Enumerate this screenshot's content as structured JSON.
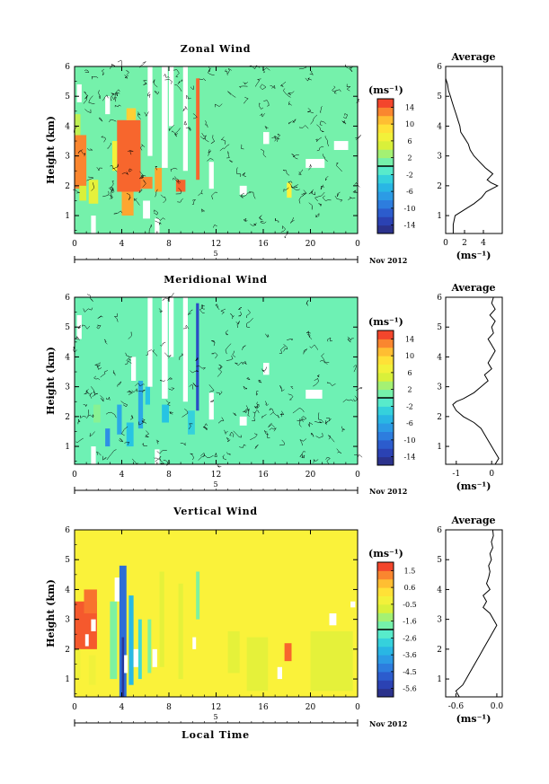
{
  "chart_data": [
    {
      "type": "heatmap",
      "title": "Zonal Wind",
      "ylabel": "Height (km)",
      "xticks": [
        "0",
        "4",
        "8",
        "12",
        "16",
        "20",
        "0"
      ],
      "yticks": [
        "1",
        "2",
        "3",
        "4",
        "5",
        "6"
      ],
      "xlim": [
        0,
        24
      ],
      "ylim": [
        0.4,
        6
      ],
      "date_tick": "5",
      "date_label": "Nov 2012",
      "colorbar": {
        "unit": "(ms⁻¹)",
        "range": [
          -16,
          16
        ],
        "ticks": [
          "14",
          "10",
          "6",
          "2",
          "-2",
          "-6",
          "-10",
          "-14"
        ]
      },
      "cells": [
        {
          "t0": 0.0,
          "t1": 1.0,
          "z0": 1.9,
          "z1": 3.7,
          "v": 13
        },
        {
          "t0": 0.4,
          "t1": 1.0,
          "z0": 1.5,
          "z1": 2.0,
          "v": 5
        },
        {
          "t0": 1.2,
          "t1": 2.0,
          "z0": 1.4,
          "z1": 2.2,
          "v": 6
        },
        {
          "t0": 3.6,
          "t1": 5.6,
          "z0": 1.8,
          "z1": 4.2,
          "v": 14
        },
        {
          "t0": 4.0,
          "t1": 5.0,
          "z0": 1.0,
          "z1": 1.8,
          "v": 12
        },
        {
          "t0": 4.4,
          "t1": 5.2,
          "z0": 4.2,
          "z1": 4.6,
          "v": 10
        },
        {
          "t0": 5.6,
          "t1": 6.6,
          "z0": 1.9,
          "z1": 2.3,
          "v": 13
        },
        {
          "t0": 6.8,
          "t1": 7.4,
          "z0": 1.8,
          "z1": 2.6,
          "v": 12
        },
        {
          "t0": 8.6,
          "t1": 9.4,
          "z0": 1.8,
          "z1": 2.2,
          "v": 14
        },
        {
          "t0": 10.3,
          "t1": 10.6,
          "z0": 2.2,
          "z1": 5.6,
          "v": 14
        },
        {
          "t0": 18.0,
          "t1": 18.4,
          "z0": 1.6,
          "z1": 2.1,
          "v": 8
        },
        {
          "t0": 0.0,
          "t1": 0.5,
          "z0": 3.7,
          "z1": 4.4,
          "v": 4
        },
        {
          "t0": 3.2,
          "t1": 3.6,
          "z0": 2.5,
          "z1": 3.5,
          "v": 7
        }
      ],
      "gaps": [
        {
          "t0": 6.2,
          "t1": 6.6,
          "z0": 3.0,
          "z1": 6.0
        },
        {
          "t0": 7.4,
          "t1": 7.9,
          "z0": 2.6,
          "z1": 6.0
        },
        {
          "t0": 8.0,
          "t1": 8.4,
          "z0": 4.0,
          "z1": 6.0
        },
        {
          "t0": 9.2,
          "t1": 9.6,
          "z0": 2.5,
          "z1": 6.0
        },
        {
          "t0": 2.6,
          "t1": 3.0,
          "z0": 4.4,
          "z1": 5.0
        },
        {
          "t0": 0.2,
          "t1": 0.6,
          "z0": 4.8,
          "z1": 5.4
        },
        {
          "t0": 1.4,
          "t1": 1.8,
          "z0": 0.4,
          "z1": 1.0
        },
        {
          "t0": 5.8,
          "t1": 6.4,
          "z0": 0.9,
          "z1": 1.5
        },
        {
          "t0": 11.4,
          "t1": 11.8,
          "z0": 1.9,
          "z1": 2.8
        },
        {
          "t0": 19.6,
          "t1": 21.2,
          "z0": 2.6,
          "z1": 2.9
        },
        {
          "t0": 14.0,
          "t1": 14.6,
          "z0": 1.7,
          "z1": 2.0
        },
        {
          "t0": 22.0,
          "t1": 23.2,
          "z0": 3.2,
          "z1": 3.5
        },
        {
          "t0": 16.0,
          "t1": 16.5,
          "z0": 3.4,
          "z1": 3.8
        },
        {
          "t0": 6.8,
          "t1": 7.2,
          "z0": 0.4,
          "z1": 0.9
        }
      ],
      "profile": {
        "xlabel": "(ms⁻¹)",
        "title": "Average",
        "xticks": [
          "0",
          "2",
          "4"
        ],
        "yticks": [
          "1",
          "2",
          "3",
          "4",
          "5",
          "6"
        ],
        "xlim": [
          0,
          6
        ],
        "ylim": [
          0.4,
          6
        ],
        "z": [
          0.4,
          0.7,
          1.0,
          1.2,
          1.4,
          1.6,
          1.8,
          2.0,
          2.1,
          2.2,
          2.4,
          2.5,
          2.6,
          2.8,
          3.0,
          3.2,
          3.4,
          3.6,
          3.8,
          4.0,
          4.2,
          4.4,
          4.6,
          4.8,
          5.0,
          5.2,
          5.4,
          5.6,
          5.8,
          6.0
        ],
        "v": [
          0.8,
          0.8,
          1.0,
          2.0,
          3.0,
          3.8,
          4.3,
          5.5,
          4.8,
          4.4,
          5.0,
          4.6,
          4.2,
          3.6,
          3.0,
          2.6,
          2.4,
          2.0,
          1.6,
          1.5,
          1.3,
          1.1,
          0.9,
          0.7,
          0.5,
          0.3,
          0.2,
          0.0,
          0.0,
          0.0
        ]
      }
    },
    {
      "type": "heatmap",
      "title": "Meridional Wind",
      "ylabel": "Height (km)",
      "xticks": [
        "0",
        "4",
        "8",
        "12",
        "16",
        "20",
        "0"
      ],
      "yticks": [
        "1",
        "2",
        "3",
        "4",
        "5",
        "6"
      ],
      "xlim": [
        0,
        24
      ],
      "ylim": [
        0.4,
        6
      ],
      "date_tick": "5",
      "date_label": "Nov 2012",
      "colorbar": {
        "unit": "(ms⁻¹)",
        "range": [
          -16,
          16
        ],
        "ticks": [
          "14",
          "10",
          "6",
          "2",
          "-2",
          "-6",
          "-10",
          "-14"
        ]
      },
      "cells": [
        {
          "t0": 3.6,
          "t1": 4.0,
          "z0": 1.4,
          "z1": 2.4,
          "v": -6
        },
        {
          "t0": 2.6,
          "t1": 3.0,
          "z0": 1.0,
          "z1": 1.6,
          "v": -8
        },
        {
          "t0": 5.4,
          "t1": 5.8,
          "z0": 1.6,
          "z1": 3.2,
          "v": -6
        },
        {
          "t0": 6.0,
          "t1": 6.4,
          "z0": 2.4,
          "z1": 3.0,
          "v": -4
        },
        {
          "t0": 10.3,
          "t1": 10.55,
          "z0": 2.2,
          "z1": 5.8,
          "v": -12
        },
        {
          "t0": 1.6,
          "t1": 2.2,
          "z0": 1.8,
          "z1": 2.4,
          "v": 2
        },
        {
          "t0": 4.4,
          "t1": 5.0,
          "z0": 1.0,
          "z1": 1.8,
          "v": -4
        },
        {
          "t0": 9.6,
          "t1": 10.2,
          "z0": 1.4,
          "z1": 2.2,
          "v": -3
        },
        {
          "t0": 7.4,
          "t1": 8.0,
          "z0": 1.8,
          "z1": 2.4,
          "v": -4
        }
      ],
      "gaps": [
        {
          "t0": 6.2,
          "t1": 6.6,
          "z0": 3.0,
          "z1": 6.0
        },
        {
          "t0": 7.4,
          "t1": 7.9,
          "z0": 2.6,
          "z1": 6.0
        },
        {
          "t0": 8.0,
          "t1": 8.4,
          "z0": 4.0,
          "z1": 6.0
        },
        {
          "t0": 9.2,
          "t1": 9.6,
          "z0": 2.5,
          "z1": 6.0
        },
        {
          "t0": 0.2,
          "t1": 0.6,
          "z0": 4.6,
          "z1": 5.4
        },
        {
          "t0": 1.4,
          "t1": 1.8,
          "z0": 0.4,
          "z1": 1.0
        },
        {
          "t0": 4.8,
          "t1": 5.2,
          "z0": 3.2,
          "z1": 4.0
        },
        {
          "t0": 11.4,
          "t1": 11.8,
          "z0": 1.9,
          "z1": 2.8
        },
        {
          "t0": 14.0,
          "t1": 14.6,
          "z0": 1.7,
          "z1": 2.0
        },
        {
          "t0": 16.0,
          "t1": 16.5,
          "z0": 3.4,
          "z1": 3.8
        },
        {
          "t0": 19.6,
          "t1": 21.0,
          "z0": 2.6,
          "z1": 2.9
        },
        {
          "t0": 6.8,
          "t1": 7.2,
          "z0": 0.4,
          "z1": 0.9
        }
      ],
      "profile": {
        "xlabel": "(ms⁻¹)",
        "title": "Average",
        "xticks": [
          "-1",
          "0"
        ],
        "yticks": [
          "1",
          "2",
          "3",
          "4",
          "5",
          "6"
        ],
        "xlim": [
          -1.3,
          0.3
        ],
        "ylim": [
          0.4,
          6
        ],
        "z": [
          0.4,
          0.6,
          0.8,
          1.0,
          1.2,
          1.4,
          1.6,
          1.8,
          2.0,
          2.2,
          2.4,
          2.5,
          2.6,
          2.8,
          3.0,
          3.2,
          3.4,
          3.6,
          3.8,
          4.0,
          4.2,
          4.4,
          4.6,
          4.8,
          5.0,
          5.2,
          5.4,
          5.6,
          5.8,
          6.0
        ],
        "v": [
          0.1,
          0.2,
          0.1,
          0.0,
          -0.1,
          -0.2,
          -0.3,
          -0.5,
          -0.8,
          -1.0,
          -1.1,
          -1.0,
          -0.8,
          -0.5,
          -0.3,
          -0.1,
          -0.2,
          0.0,
          -0.1,
          0.0,
          0.1,
          0.0,
          -0.1,
          0.05,
          0.0,
          0.1,
          -0.05,
          0.1,
          0.0,
          0.05
        ]
      }
    },
    {
      "type": "heatmap",
      "title": "Vertical Wind",
      "ylabel": "Height (km)",
      "xlabel": "Local Time",
      "xticks": [
        "0",
        "4",
        "8",
        "12",
        "16",
        "20",
        "0"
      ],
      "yticks": [
        "1",
        "2",
        "3",
        "4",
        "5",
        "6"
      ],
      "xlim": [
        0,
        24
      ],
      "ylim": [
        0.4,
        6
      ],
      "date_tick": "5",
      "date_label": "Nov 2012",
      "colorbar": {
        "unit": "(ms⁻¹)",
        "range": [
          -6,
          2
        ],
        "ticks": [
          "1.5",
          "0.6",
          "-0.5",
          "-1.6",
          "-2.6",
          "-3.6",
          "-4.5",
          "-5.6"
        ]
      },
      "cells": [
        {
          "t0": 0.0,
          "t1": 1.9,
          "z0": 2.0,
          "z1": 3.6,
          "v": 1.6
        },
        {
          "t0": 0.8,
          "t1": 1.9,
          "z0": 3.2,
          "z1": 4.0,
          "v": 1.4
        },
        {
          "t0": 0.0,
          "t1": 0.5,
          "z0": 1.0,
          "z1": 2.0,
          "v": -0.3
        },
        {
          "t0": 3.8,
          "t1": 4.4,
          "z0": 0.4,
          "z1": 4.8,
          "v": -4.5
        },
        {
          "t0": 4.0,
          "t1": 4.2,
          "z0": 0.4,
          "z1": 2.4,
          "v": -5.6
        },
        {
          "t0": 3.0,
          "t1": 3.6,
          "z0": 1.0,
          "z1": 3.6,
          "v": -1.6
        },
        {
          "t0": 4.6,
          "t1": 5.0,
          "z0": 0.8,
          "z1": 3.8,
          "v": -3.2
        },
        {
          "t0": 5.4,
          "t1": 5.7,
          "z0": 1.0,
          "z1": 3.0,
          "v": -2.6
        },
        {
          "t0": 6.2,
          "t1": 6.5,
          "z0": 1.2,
          "z1": 3.0,
          "v": -1.6
        },
        {
          "t0": 7.2,
          "t1": 7.6,
          "z0": 1.4,
          "z1": 4.6,
          "v": -0.5
        },
        {
          "t0": 8.8,
          "t1": 9.2,
          "z0": 1.0,
          "z1": 4.2,
          "v": -0.5
        },
        {
          "t0": 10.3,
          "t1": 10.6,
          "z0": 3.0,
          "z1": 4.6,
          "v": -1.6
        },
        {
          "t0": 13.0,
          "t1": 14.0,
          "z0": 1.2,
          "z1": 2.6,
          "v": -0.5
        },
        {
          "t0": 14.6,
          "t1": 16.4,
          "z0": 0.6,
          "z1": 2.4,
          "v": -0.5
        },
        {
          "t0": 17.8,
          "t1": 18.4,
          "z0": 1.6,
          "z1": 2.2,
          "v": 1.5
        },
        {
          "t0": 20.0,
          "t1": 23.6,
          "z0": 0.6,
          "z1": 2.6,
          "v": -0.5
        },
        {
          "t0": 1.2,
          "t1": 1.8,
          "z0": 0.8,
          "z1": 1.8,
          "v": -0.3
        }
      ],
      "gaps": [
        {
          "t0": 0.9,
          "t1": 1.2,
          "z0": 2.1,
          "z1": 2.5
        },
        {
          "t0": 1.4,
          "t1": 1.8,
          "z0": 2.6,
          "z1": 3.0
        },
        {
          "t0": 4.2,
          "t1": 4.5,
          "z0": 1.2,
          "z1": 1.8
        },
        {
          "t0": 3.4,
          "t1": 3.8,
          "z0": 3.6,
          "z1": 4.4
        },
        {
          "t0": 5.0,
          "t1": 5.4,
          "z0": 1.4,
          "z1": 2.0
        },
        {
          "t0": 6.6,
          "t1": 7.0,
          "z0": 1.4,
          "z1": 2.0
        },
        {
          "t0": 21.6,
          "t1": 22.2,
          "z0": 2.8,
          "z1": 3.2
        },
        {
          "t0": 23.4,
          "t1": 23.8,
          "z0": 3.4,
          "z1": 3.6
        },
        {
          "t0": 17.2,
          "t1": 17.6,
          "z0": 1.0,
          "z1": 1.4
        },
        {
          "t0": 10.0,
          "t1": 10.3,
          "z0": 2.0,
          "z1": 2.4
        }
      ],
      "profile": {
        "xlabel": "(ms⁻¹)",
        "title": "Average",
        "xticks": [
          "-0.6",
          "0.0"
        ],
        "yticks": [
          "1",
          "2",
          "3",
          "4",
          "5",
          "6"
        ],
        "xlim": [
          -0.75,
          0.08
        ],
        "ylim": [
          0.4,
          6
        ],
        "z": [
          0.4,
          0.6,
          0.8,
          1.0,
          1.2,
          1.4,
          1.6,
          1.8,
          2.0,
          2.2,
          2.4,
          2.6,
          2.8,
          3.0,
          3.2,
          3.4,
          3.6,
          3.8,
          4.0,
          4.2,
          4.4,
          4.6,
          4.8,
          5.0,
          5.2,
          5.4,
          5.6,
          5.8,
          6.0
        ],
        "v": [
          -0.55,
          -0.6,
          -0.5,
          -0.45,
          -0.4,
          -0.35,
          -0.3,
          -0.25,
          -0.2,
          -0.15,
          -0.1,
          -0.05,
          0.0,
          -0.05,
          -0.1,
          -0.2,
          -0.15,
          -0.2,
          -0.1,
          -0.15,
          -0.12,
          -0.1,
          -0.12,
          -0.08,
          -0.1,
          -0.06,
          -0.08,
          -0.05,
          -0.06
        ]
      }
    }
  ]
}
